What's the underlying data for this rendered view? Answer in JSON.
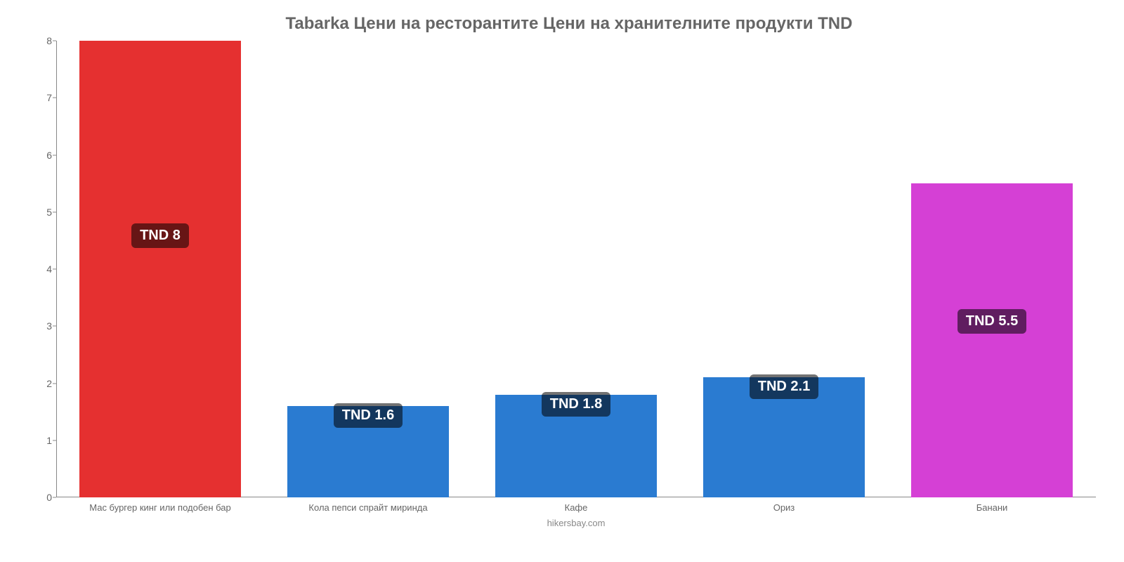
{
  "chart": {
    "type": "bar",
    "title": "Tabarka Цени на ресторантите Цени на хранителните продукти TND",
    "title_fontsize": 24,
    "title_color": "#666666",
    "attribution": "hikersbay.com",
    "attribution_color": "#888888",
    "background_color": "#ffffff",
    "axis_color": "#888888",
    "tick_label_color": "#666666",
    "tick_fontsize": 14,
    "x_label_fontsize": 13,
    "value_label_fontsize": 20,
    "value_label_bg": "rgba(0,0,0,0.55)",
    "value_label_text_color": "#ffffff",
    "ylim": [
      0,
      8
    ],
    "ytick_step": 1,
    "yticks": [
      0,
      1,
      2,
      3,
      4,
      5,
      6,
      7,
      8
    ],
    "bar_width": 0.78,
    "categories": [
      "Мас бургер кинг или подобен бар",
      "Кола пепси спрайт миринда",
      "Кафе",
      "Ориз",
      "Банани"
    ],
    "values": [
      8,
      1.6,
      1.8,
      2.1,
      5.5
    ],
    "value_labels": [
      "TND 8",
      "TND 1.6",
      "TND 1.8",
      "TND 2.1",
      "TND 5.5"
    ],
    "bar_colors": [
      "#e53030",
      "#2a7bd1",
      "#2a7bd1",
      "#2a7bd1",
      "#d540d5"
    ],
    "label_positions": [
      "inside",
      "below",
      "below",
      "below",
      "inside"
    ]
  }
}
